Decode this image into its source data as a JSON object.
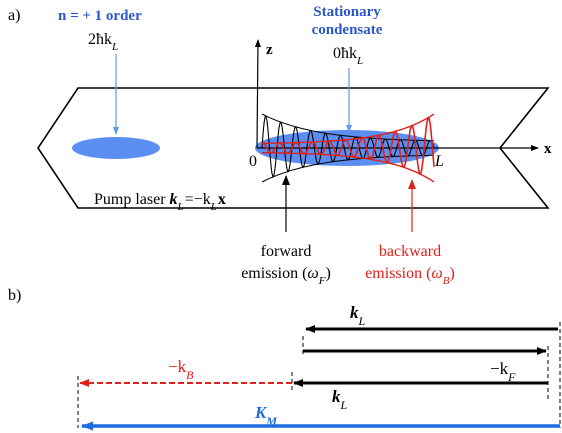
{
  "panel_a": {
    "label": "a)",
    "n_order_title": "n = + 1 order",
    "n_order_momentum": "2ħk",
    "n_order_momentum_sub": "L",
    "condensate_title_line1": "Stationary",
    "condensate_title_line2": "condensate",
    "condensate_momentum": "0ħk",
    "condensate_momentum_sub": "L",
    "axis_z": "z",
    "axis_x": "x",
    "origin": "0",
    "length": "L",
    "pump_prefix": "Pump laser ",
    "pump_k": "k",
    "pump_k_sub": "L",
    "pump_eq": "=−k",
    "pump_eq_sub": "L",
    "pump_x": "x",
    "forward_line1": "forward",
    "forward_line2": "emission (",
    "forward_omega": "ω",
    "forward_omega_sub": "F",
    "forward_close": ")",
    "backward_line1": "backward",
    "backward_line2": "emission (",
    "backward_omega": "ω",
    "backward_omega_sub": "B",
    "backward_close": ")"
  },
  "panel_b": {
    "label": "b)",
    "kL_top": "k",
    "kL_top_sub": "L",
    "kF": "−k",
    "kF_sub": "F",
    "kB": "−k",
    "kB_sub": "B",
    "kL_bottom": "k",
    "kL_bottom_sub": "L",
    "KM": "K",
    "KM_sub": "M"
  },
  "colors": {
    "blue_cloud": "#5b8ef0",
    "blue_text": "#2b57c8",
    "blue_arrow": "#1f6be0",
    "red": "#e0201b",
    "black": "#000000"
  }
}
